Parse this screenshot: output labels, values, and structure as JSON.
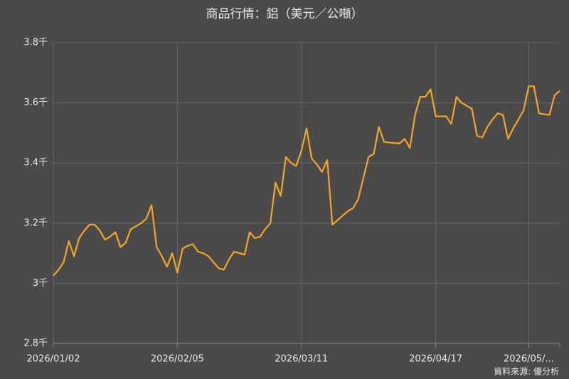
{
  "chart_data": {
    "type": "line",
    "title": "商品行情：鋁（美元／公噸）",
    "source": "資料來源: 優分析",
    "categories": [
      "2026/01/02",
      null,
      null,
      null,
      null,
      null,
      null,
      null,
      null,
      null,
      null,
      null,
      null,
      null,
      null,
      null,
      null,
      null,
      null,
      null,
      null,
      null,
      null,
      null,
      "2026/02/05",
      null,
      null,
      null,
      null,
      null,
      null,
      null,
      null,
      null,
      null,
      null,
      null,
      null,
      null,
      null,
      null,
      null,
      null,
      null,
      null,
      null,
      null,
      null,
      "2026/03/11",
      null,
      null,
      null,
      null,
      null,
      null,
      null,
      null,
      null,
      null,
      null,
      null,
      null,
      null,
      null,
      null,
      null,
      null,
      null,
      null,
      null,
      null,
      null,
      null,
      null,
      "2026/04/17",
      null,
      null,
      null,
      null,
      null,
      null,
      null,
      null,
      null,
      null,
      null,
      null,
      null,
      null,
      null,
      null,
      null,
      "2026/05/...",
      null,
      null,
      null,
      null,
      null,
      null
    ],
    "series": [
      {
        "name": "鋁",
        "color": "#f5a623",
        "values": [
          3025,
          3045,
          3070,
          3140,
          3090,
          3150,
          3175,
          3195,
          3195,
          3175,
          3145,
          3155,
          3170,
          3120,
          3135,
          3180,
          3190,
          3200,
          3215,
          3260,
          3120,
          3090,
          3055,
          3100,
          3035,
          3115,
          3125,
          3130,
          3105,
          3100,
          3090,
          3070,
          3050,
          3045,
          3080,
          3105,
          3100,
          3095,
          3170,
          3150,
          3155,
          3180,
          3200,
          3335,
          3290,
          3420,
          3400,
          3390,
          3440,
          3515,
          3415,
          3395,
          3370,
          3410,
          3195,
          3210,
          3225,
          3240,
          3250,
          3280,
          3350,
          3420,
          3430,
          3520,
          3470,
          3468,
          3466,
          3465,
          3480,
          3450,
          3560,
          3620,
          3620,
          3645,
          3555,
          3555,
          3555,
          3530,
          3620,
          3600,
          3590,
          3580,
          3490,
          3485,
          3520,
          3545,
          3565,
          3560,
          3480,
          3515,
          3545,
          3575,
          3655,
          3655,
          3565,
          3562,
          3560,
          3625,
          3640
        ]
      }
    ],
    "ylim": [
      2800,
      3800
    ],
    "yticks": [
      {
        "value": 2800,
        "label": "2.8千"
      },
      {
        "value": 3000,
        "label": "3千"
      },
      {
        "value": 3200,
        "label": "3.2千"
      },
      {
        "value": 3400,
        "label": "3.4千"
      },
      {
        "value": 3600,
        "label": "3.6千"
      },
      {
        "value": 3800,
        "label": "3.8千"
      }
    ],
    "grid": true
  }
}
